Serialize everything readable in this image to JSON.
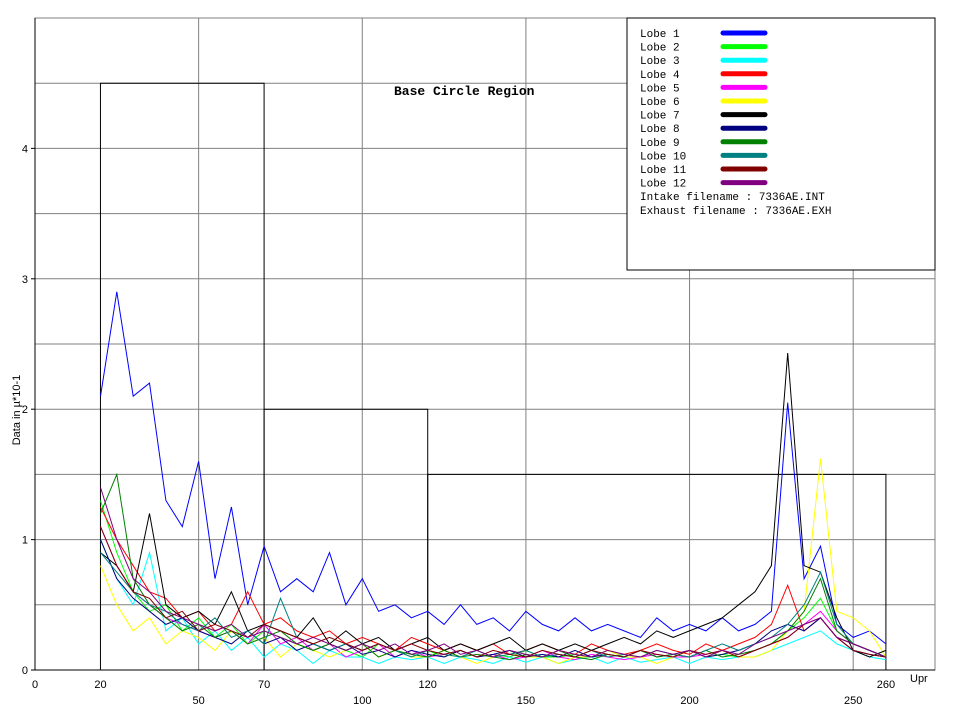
{
  "chart_data": {
    "type": "line",
    "title": "Base Circle Region",
    "xlabel": "Upr",
    "ylabel": "Data in µ*10-1",
    "xlim": [
      0,
      275
    ],
    "ylim": [
      0,
      5
    ],
    "grid": true,
    "legend_placement": "top-right",
    "x_ticks_row1": [
      "0",
      "20",
      "70",
      "120",
      "260"
    ],
    "x_ticks_row2": [
      "50",
      "100",
      "150",
      "200",
      "250"
    ],
    "y_ticks": [
      "0",
      "1",
      "2",
      "3",
      "4"
    ],
    "regions": [
      {
        "x_from": 20,
        "x_to": 70,
        "limit": 4.5
      },
      {
        "x_from": 70,
        "x_to": 120,
        "limit": 2.0
      },
      {
        "x_from": 120,
        "x_to": 260,
        "limit": 1.5
      }
    ],
    "x": [
      20,
      25,
      30,
      35,
      40,
      45,
      50,
      55,
      60,
      65,
      70,
      75,
      80,
      85,
      90,
      95,
      100,
      105,
      110,
      115,
      120,
      125,
      130,
      135,
      140,
      145,
      150,
      155,
      160,
      165,
      170,
      175,
      180,
      185,
      190,
      195,
      200,
      205,
      210,
      215,
      220,
      225,
      230,
      235,
      240,
      245,
      250,
      255,
      260
    ],
    "series": [
      {
        "name": "Lobe  1",
        "color": "#0000ff",
        "values": [
          2.1,
          2.9,
          2.1,
          2.2,
          1.3,
          1.1,
          1.6,
          0.7,
          1.25,
          0.5,
          0.95,
          0.6,
          0.7,
          0.6,
          0.9,
          0.5,
          0.7,
          0.45,
          0.5,
          0.4,
          0.45,
          0.35,
          0.5,
          0.35,
          0.4,
          0.3,
          0.45,
          0.35,
          0.3,
          0.4,
          0.3,
          0.35,
          0.3,
          0.25,
          0.4,
          0.3,
          0.35,
          0.3,
          0.4,
          0.3,
          0.35,
          0.45,
          2.05,
          0.7,
          0.95,
          0.35,
          0.25,
          0.3,
          0.2
        ]
      },
      {
        "name": "Lobe  2",
        "color": "#00ff00",
        "values": [
          1.3,
          0.9,
          0.6,
          0.45,
          0.5,
          0.3,
          0.4,
          0.25,
          0.35,
          0.2,
          0.3,
          0.25,
          0.2,
          0.15,
          0.2,
          0.15,
          0.1,
          0.2,
          0.15,
          0.1,
          0.15,
          0.1,
          0.15,
          0.1,
          0.12,
          0.1,
          0.15,
          0.1,
          0.1,
          0.12,
          0.1,
          0.15,
          0.1,
          0.1,
          0.12,
          0.1,
          0.15,
          0.1,
          0.12,
          0.1,
          0.15,
          0.2,
          0.3,
          0.4,
          0.55,
          0.3,
          0.2,
          0.15,
          0.1
        ]
      },
      {
        "name": "Lobe  3",
        "color": "#00ffff",
        "values": [
          1.0,
          0.7,
          0.5,
          0.9,
          0.3,
          0.4,
          0.2,
          0.3,
          0.15,
          0.25,
          0.1,
          0.2,
          0.15,
          0.05,
          0.15,
          0.1,
          0.1,
          0.05,
          0.1,
          0.08,
          0.1,
          0.05,
          0.1,
          0.08,
          0.05,
          0.1,
          0.06,
          0.1,
          0.05,
          0.08,
          0.1,
          0.05,
          0.1,
          0.06,
          0.08,
          0.1,
          0.05,
          0.1,
          0.08,
          0.1,
          0.1,
          0.15,
          0.2,
          0.25,
          0.3,
          0.2,
          0.15,
          0.1,
          0.08
        ]
      },
      {
        "name": "Lobe  4",
        "color": "#ff0000",
        "values": [
          1.25,
          1.0,
          0.8,
          0.6,
          0.55,
          0.4,
          0.45,
          0.3,
          0.35,
          0.6,
          0.35,
          0.4,
          0.3,
          0.25,
          0.3,
          0.2,
          0.25,
          0.2,
          0.15,
          0.25,
          0.2,
          0.15,
          0.2,
          0.15,
          0.2,
          0.12,
          0.15,
          0.2,
          0.15,
          0.12,
          0.2,
          0.15,
          0.12,
          0.15,
          0.2,
          0.15,
          0.12,
          0.2,
          0.15,
          0.2,
          0.25,
          0.35,
          0.65,
          0.3,
          0.4,
          0.25,
          0.2,
          0.15,
          0.1
        ]
      },
      {
        "name": "Lobe  5",
        "color": "#ff00ff",
        "values": [
          1.1,
          0.8,
          0.6,
          0.5,
          0.4,
          0.35,
          0.3,
          0.25,
          0.3,
          0.2,
          0.35,
          0.2,
          0.25,
          0.15,
          0.2,
          0.1,
          0.15,
          0.2,
          0.1,
          0.15,
          0.1,
          0.12,
          0.15,
          0.1,
          0.12,
          0.08,
          0.1,
          0.15,
          0.1,
          0.08,
          0.12,
          0.1,
          0.08,
          0.1,
          0.12,
          0.1,
          0.1,
          0.12,
          0.15,
          0.1,
          0.15,
          0.2,
          0.25,
          0.35,
          0.45,
          0.3,
          0.2,
          0.15,
          0.1
        ]
      },
      {
        "name": "Lobe  6",
        "color": "#ffff00",
        "values": [
          0.8,
          0.5,
          0.3,
          0.4,
          0.2,
          0.3,
          0.25,
          0.15,
          0.3,
          0.2,
          0.25,
          0.1,
          0.2,
          0.15,
          0.1,
          0.15,
          0.2,
          0.1,
          0.15,
          0.1,
          0.1,
          0.15,
          0.1,
          0.05,
          0.1,
          0.15,
          0.1,
          0.1,
          0.05,
          0.1,
          0.1,
          0.15,
          0.1,
          0.1,
          0.05,
          0.1,
          0.15,
          0.1,
          0.15,
          0.1,
          0.1,
          0.15,
          0.3,
          0.45,
          1.62,
          0.45,
          0.4,
          0.3,
          0.1
        ]
      },
      {
        "name": "Lobe  7",
        "color": "#000000",
        "values": [
          0.9,
          0.8,
          0.6,
          1.2,
          0.5,
          0.4,
          0.45,
          0.35,
          0.6,
          0.3,
          0.35,
          0.3,
          0.25,
          0.4,
          0.2,
          0.3,
          0.2,
          0.25,
          0.15,
          0.2,
          0.25,
          0.15,
          0.2,
          0.15,
          0.2,
          0.25,
          0.15,
          0.2,
          0.15,
          0.2,
          0.15,
          0.2,
          0.25,
          0.2,
          0.3,
          0.25,
          0.3,
          0.35,
          0.4,
          0.5,
          0.6,
          0.8,
          2.43,
          0.8,
          0.75,
          0.4,
          0.15,
          0.1,
          0.15
        ]
      },
      {
        "name": "Lobe  8",
        "color": "#000080",
        "values": [
          1.0,
          0.7,
          0.55,
          0.45,
          0.35,
          0.4,
          0.3,
          0.25,
          0.2,
          0.3,
          0.2,
          0.25,
          0.15,
          0.2,
          0.15,
          0.2,
          0.12,
          0.15,
          0.1,
          0.15,
          0.12,
          0.1,
          0.15,
          0.1,
          0.12,
          0.15,
          0.1,
          0.12,
          0.1,
          0.15,
          0.1,
          0.12,
          0.1,
          0.15,
          0.1,
          0.12,
          0.15,
          0.1,
          0.12,
          0.15,
          0.2,
          0.3,
          0.35,
          0.3,
          0.4,
          0.25,
          0.15,
          0.12,
          0.1
        ]
      },
      {
        "name": "Lobe  9",
        "color": "#008000",
        "values": [
          1.2,
          1.5,
          0.7,
          0.5,
          0.4,
          0.3,
          0.35,
          0.25,
          0.3,
          0.2,
          0.25,
          0.3,
          0.2,
          0.15,
          0.2,
          0.15,
          0.2,
          0.1,
          0.15,
          0.12,
          0.1,
          0.15,
          0.1,
          0.12,
          0.1,
          0.08,
          0.12,
          0.1,
          0.15,
          0.1,
          0.08,
          0.12,
          0.1,
          0.15,
          0.1,
          0.12,
          0.1,
          0.15,
          0.1,
          0.12,
          0.15,
          0.2,
          0.3,
          0.45,
          0.7,
          0.3,
          0.2,
          0.15,
          0.1
        ]
      },
      {
        "name": "Lobe 10",
        "color": "#008080",
        "values": [
          0.9,
          0.75,
          0.6,
          0.5,
          0.45,
          0.35,
          0.3,
          0.4,
          0.25,
          0.3,
          0.2,
          0.55,
          0.25,
          0.2,
          0.15,
          0.2,
          0.15,
          0.2,
          0.15,
          0.1,
          0.15,
          0.12,
          0.1,
          0.15,
          0.1,
          0.12,
          0.15,
          0.1,
          0.12,
          0.1,
          0.15,
          0.1,
          0.12,
          0.1,
          0.15,
          0.12,
          0.1,
          0.15,
          0.2,
          0.15,
          0.2,
          0.25,
          0.35,
          0.5,
          0.75,
          0.35,
          0.2,
          0.15,
          0.1
        ]
      },
      {
        "name": "Lobe 11",
        "color": "#800000",
        "values": [
          1.1,
          0.8,
          0.6,
          0.55,
          0.4,
          0.45,
          0.3,
          0.35,
          0.3,
          0.25,
          0.35,
          0.3,
          0.25,
          0.2,
          0.25,
          0.2,
          0.15,
          0.2,
          0.15,
          0.2,
          0.15,
          0.12,
          0.15,
          0.1,
          0.15,
          0.12,
          0.1,
          0.15,
          0.12,
          0.1,
          0.15,
          0.12,
          0.1,
          0.15,
          0.12,
          0.1,
          0.15,
          0.12,
          0.15,
          0.1,
          0.15,
          0.2,
          0.25,
          0.35,
          0.4,
          0.25,
          0.15,
          0.12,
          0.1
        ]
      },
      {
        "name": "Lobe 12",
        "color": "#800080",
        "values": [
          1.4,
          1.0,
          0.7,
          0.6,
          0.45,
          0.4,
          0.35,
          0.3,
          0.35,
          0.25,
          0.3,
          0.25,
          0.2,
          0.25,
          0.2,
          0.15,
          0.2,
          0.15,
          0.2,
          0.12,
          0.15,
          0.2,
          0.12,
          0.15,
          0.1,
          0.15,
          0.12,
          0.1,
          0.15,
          0.12,
          0.1,
          0.15,
          0.12,
          0.1,
          0.15,
          0.12,
          0.15,
          0.1,
          0.15,
          0.12,
          0.2,
          0.25,
          0.3,
          0.35,
          0.4,
          0.25,
          0.2,
          0.15,
          0.1
        ]
      }
    ],
    "legend_notes": [
      "Intake filename : 7336AE.INT",
      "Exhaust filename : 7336AE.EXH"
    ]
  }
}
